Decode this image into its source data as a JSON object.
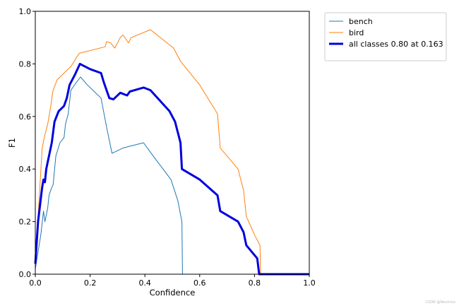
{
  "chart_data": {
    "type": "line",
    "title": "",
    "xlabel": "Confidence",
    "ylabel": "F1",
    "xlim": [
      0,
      1
    ],
    "ylim": [
      0,
      1
    ],
    "x_ticks": [
      "0.0",
      "0.2",
      "0.4",
      "0.6",
      "0.8",
      "1.0"
    ],
    "y_ticks": [
      "0.0",
      "0.2",
      "0.4",
      "0.6",
      "0.8",
      "1.0"
    ],
    "grid": false,
    "legend_position": "outside-top-right",
    "series": [
      {
        "name": "bench",
        "color": "#1f77b4",
        "width": 1,
        "points": [
          [
            0.0,
            0.02
          ],
          [
            0.02,
            0.15
          ],
          [
            0.03,
            0.24
          ],
          [
            0.035,
            0.2
          ],
          [
            0.045,
            0.25
          ],
          [
            0.05,
            0.3
          ],
          [
            0.06,
            0.33
          ],
          [
            0.065,
            0.34
          ],
          [
            0.075,
            0.45
          ],
          [
            0.09,
            0.5
          ],
          [
            0.105,
            0.52
          ],
          [
            0.11,
            0.57
          ],
          [
            0.12,
            0.61
          ],
          [
            0.13,
            0.7
          ],
          [
            0.15,
            0.73
          ],
          [
            0.165,
            0.75
          ],
          [
            0.19,
            0.72
          ],
          [
            0.24,
            0.67
          ],
          [
            0.26,
            0.56
          ],
          [
            0.28,
            0.46
          ],
          [
            0.32,
            0.48
          ],
          [
            0.395,
            0.5
          ],
          [
            0.43,
            0.45
          ],
          [
            0.495,
            0.36
          ],
          [
            0.52,
            0.28
          ],
          [
            0.535,
            0.2
          ],
          [
            0.537,
            0.0
          ],
          [
            0.82,
            0.0
          ],
          [
            1.0,
            0.0
          ]
        ]
      },
      {
        "name": "bird",
        "color": "#ff7f0e",
        "width": 1,
        "points": [
          [
            0.0,
            0.06
          ],
          [
            0.015,
            0.3
          ],
          [
            0.025,
            0.48
          ],
          [
            0.035,
            0.53
          ],
          [
            0.045,
            0.57
          ],
          [
            0.055,
            0.63
          ],
          [
            0.065,
            0.7
          ],
          [
            0.08,
            0.74
          ],
          [
            0.1,
            0.76
          ],
          [
            0.13,
            0.79
          ],
          [
            0.16,
            0.84
          ],
          [
            0.255,
            0.865
          ],
          [
            0.26,
            0.885
          ],
          [
            0.275,
            0.88
          ],
          [
            0.29,
            0.86
          ],
          [
            0.31,
            0.9
          ],
          [
            0.32,
            0.91
          ],
          [
            0.34,
            0.88
          ],
          [
            0.35,
            0.9
          ],
          [
            0.42,
            0.93
          ],
          [
            0.505,
            0.86
          ],
          [
            0.53,
            0.81
          ],
          [
            0.6,
            0.72
          ],
          [
            0.665,
            0.61
          ],
          [
            0.675,
            0.48
          ],
          [
            0.74,
            0.4
          ],
          [
            0.76,
            0.32
          ],
          [
            0.77,
            0.22
          ],
          [
            0.8,
            0.15
          ],
          [
            0.82,
            0.11
          ],
          [
            0.822,
            0.0
          ],
          [
            1.0,
            0.0
          ]
        ]
      },
      {
        "name": "all classes 0.80 at 0.163",
        "color": "#0000dd",
        "width": 3,
        "points": [
          [
            0.0,
            0.04
          ],
          [
            0.01,
            0.2
          ],
          [
            0.025,
            0.33
          ],
          [
            0.03,
            0.36
          ],
          [
            0.035,
            0.35
          ],
          [
            0.04,
            0.4
          ],
          [
            0.05,
            0.45
          ],
          [
            0.06,
            0.5
          ],
          [
            0.07,
            0.58
          ],
          [
            0.085,
            0.62
          ],
          [
            0.105,
            0.64
          ],
          [
            0.115,
            0.67
          ],
          [
            0.125,
            0.72
          ],
          [
            0.145,
            0.76
          ],
          [
            0.163,
            0.8
          ],
          [
            0.2,
            0.78
          ],
          [
            0.24,
            0.765
          ],
          [
            0.25,
            0.73
          ],
          [
            0.27,
            0.67
          ],
          [
            0.285,
            0.665
          ],
          [
            0.31,
            0.69
          ],
          [
            0.335,
            0.68
          ],
          [
            0.345,
            0.695
          ],
          [
            0.395,
            0.71
          ],
          [
            0.42,
            0.7
          ],
          [
            0.49,
            0.62
          ],
          [
            0.51,
            0.58
          ],
          [
            0.53,
            0.5
          ],
          [
            0.535,
            0.4
          ],
          [
            0.6,
            0.36
          ],
          [
            0.665,
            0.3
          ],
          [
            0.675,
            0.24
          ],
          [
            0.74,
            0.2
          ],
          [
            0.76,
            0.16
          ],
          [
            0.77,
            0.11
          ],
          [
            0.81,
            0.06
          ],
          [
            0.817,
            0.0
          ],
          [
            1.0,
            0.0
          ]
        ]
      }
    ]
  },
  "watermark": "CSDN @Neutrino"
}
